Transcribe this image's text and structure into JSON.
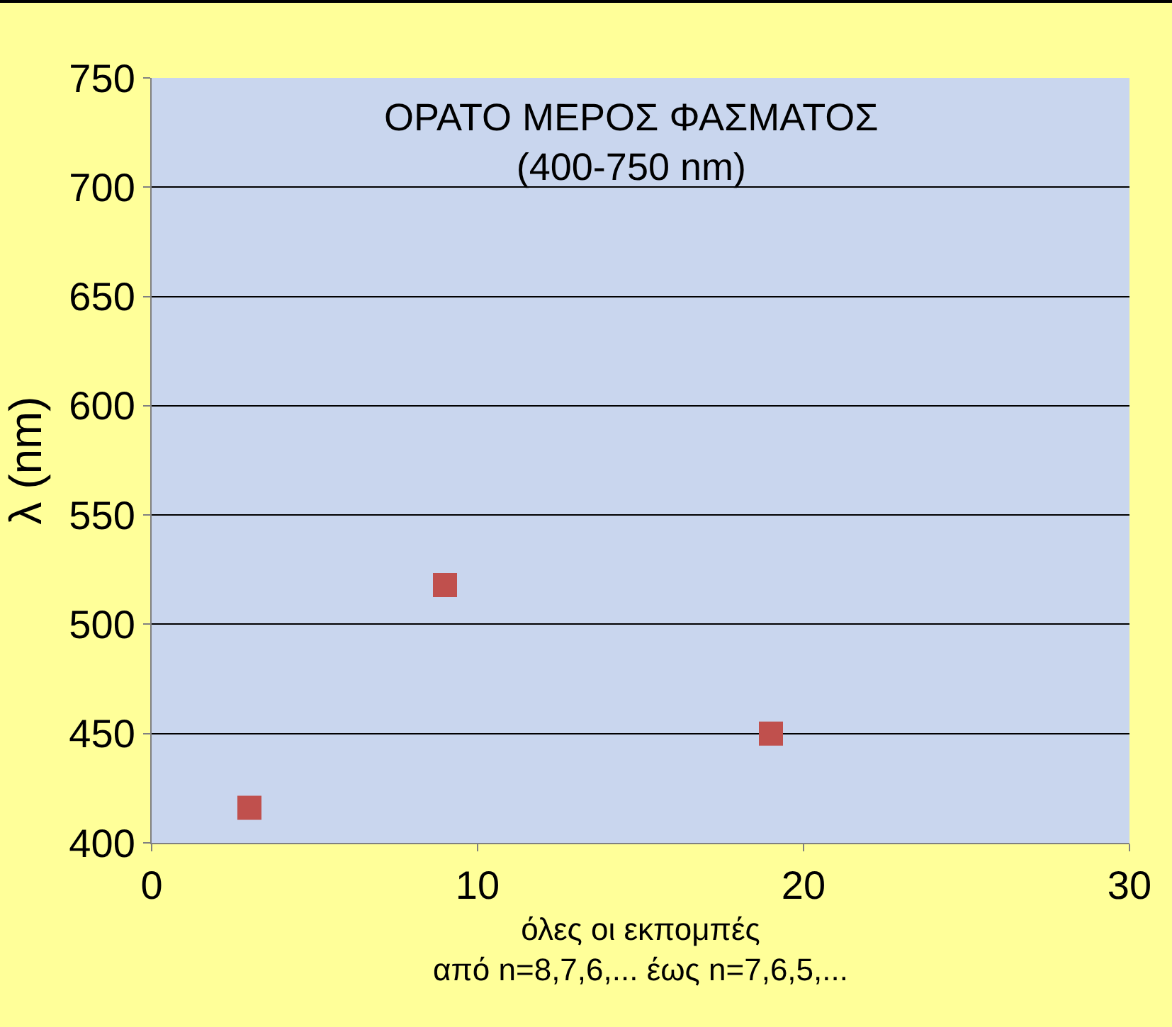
{
  "chart_data": {
    "type": "scatter",
    "x": [
      3,
      9,
      19
    ],
    "values": [
      416,
      518,
      450
    ],
    "color": "#c0504d",
    "marker": "square",
    "xlim": [
      0,
      30
    ],
    "xticks": [
      0,
      10,
      20,
      30
    ],
    "ylim": [
      400,
      750
    ],
    "yticks": [
      400,
      450,
      500,
      550,
      600,
      650,
      700,
      750
    ],
    "xlabel": "όλες οι εκπομπές\nαπό n=8,7,6,... έως n=7,6,5,...",
    "ylabel": "λ (nm)",
    "annotations": [
      "ΟΡΑΤΟ ΜΕΡΟΣ ΦΑΣΜΑΤΟΣ\n(400-750 nm)"
    ],
    "grid": "y",
    "legend": false
  }
}
